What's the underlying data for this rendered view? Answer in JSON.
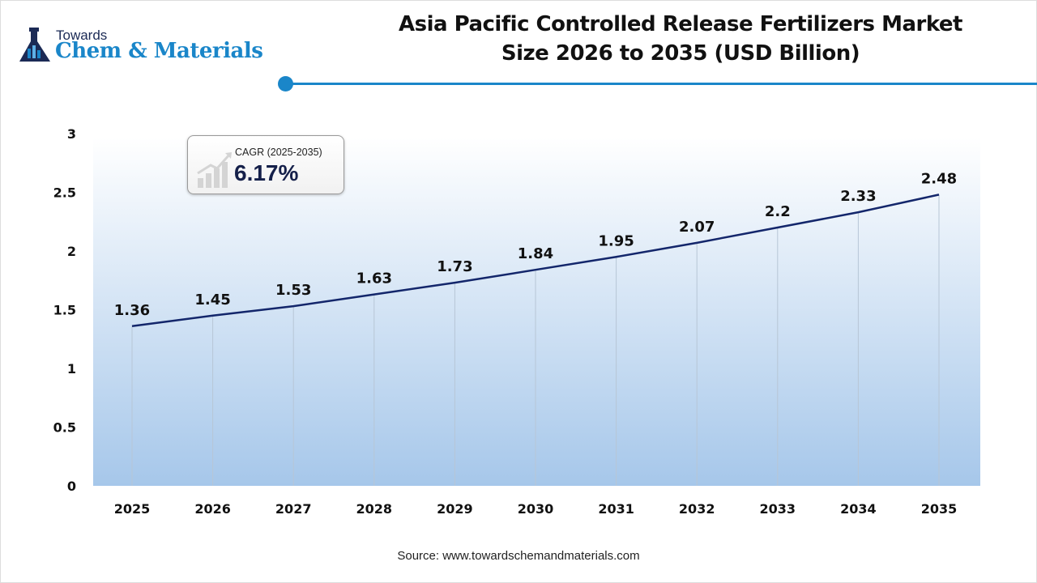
{
  "brand": {
    "line1": "Towards",
    "line2": "Chem & Materials"
  },
  "title": "Asia Pacific Controlled Release Fertilizers Market Size 2026 to 2035 (USD Billion)",
  "cagr": {
    "label": "CAGR (2025-2035)",
    "value": "6.17%"
  },
  "source": "Source: www.towardschemandmaterials.com",
  "colors": {
    "line": "#13266b",
    "accent": "#1a86c9",
    "fill_bottom": "#a6c7ea"
  },
  "chart_data": {
    "type": "area",
    "title": "Asia Pacific Controlled Release Fertilizers Market Size 2026 to 2035 (USD Billion)",
    "categories": [
      "2025",
      "2026",
      "2027",
      "2028",
      "2029",
      "2030",
      "2031",
      "2032",
      "2033",
      "2034",
      "2035"
    ],
    "values": [
      1.36,
      1.45,
      1.53,
      1.63,
      1.73,
      1.84,
      1.95,
      2.07,
      2.2,
      2.33,
      2.48
    ],
    "labels": [
      "1.36",
      "1.45",
      "1.53",
      "1.63",
      "1.73",
      "1.84",
      "1.95",
      "2.07",
      "2.2",
      "2.33",
      "2.48"
    ],
    "yticks": [
      "0",
      "0.5",
      "1",
      "1.5",
      "2",
      "2.5",
      "3"
    ],
    "ylim": [
      0,
      3
    ],
    "grid": false,
    "xlabel": "",
    "ylabel": ""
  }
}
